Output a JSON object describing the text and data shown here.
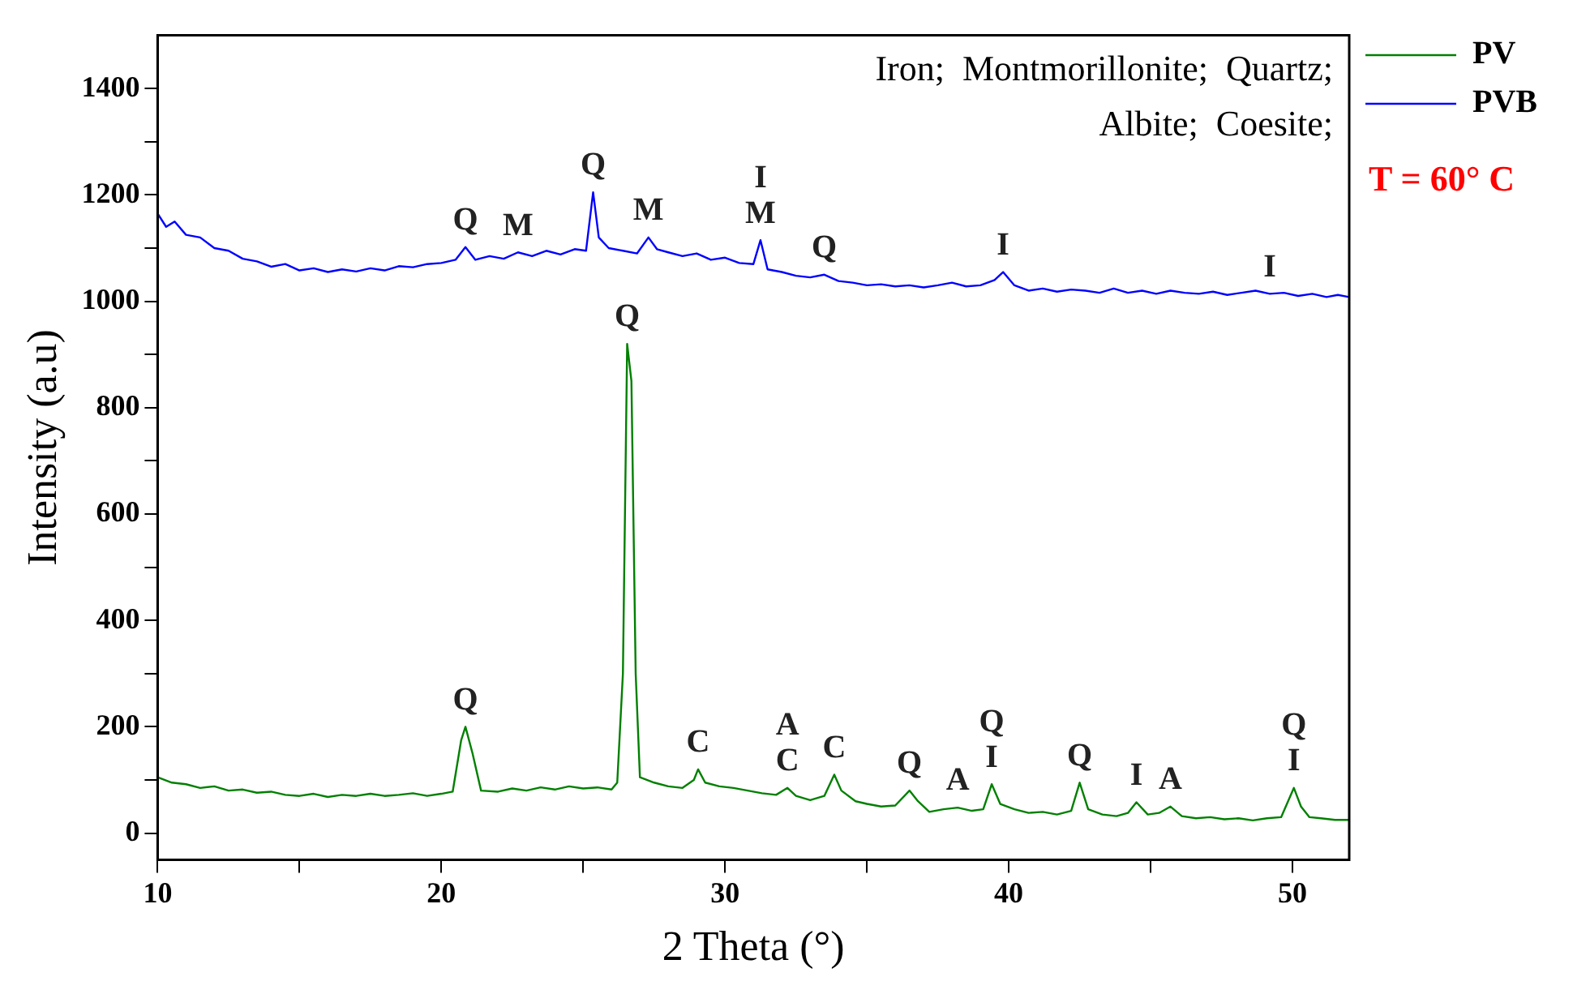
{
  "chart_data": {
    "type": "line",
    "xlabel": "2 Theta (°)",
    "ylabel": "Intensity (a.u)",
    "xlim": [
      10,
      52
    ],
    "ylim": [
      -50,
      1500
    ],
    "xticks": [
      10,
      {
        "value": 15,
        "label": null
      },
      20,
      {
        "value": 25,
        "label": null
      },
      30,
      {
        "value": 35,
        "label": null
      },
      40,
      {
        "value": 45,
        "label": null
      },
      50
    ],
    "yticks": [
      0,
      {
        "value": 100,
        "label": null
      },
      200,
      {
        "value": 300,
        "label": null
      },
      400,
      {
        "value": 500,
        "label": null
      },
      600,
      {
        "value": 700,
        "label": null
      },
      800,
      {
        "value": 900,
        "label": null
      },
      1000,
      {
        "value": 1100,
        "label": null
      },
      1200,
      {
        "value": 1300,
        "label": null
      },
      1400
    ],
    "grid": false,
    "legend": "top right",
    "marker": "none",
    "line_style": "solid",
    "series": [
      {
        "name": "PV",
        "color": "#008000",
        "x": [
          10,
          10.5,
          11,
          11.5,
          12,
          12.5,
          13,
          13.5,
          14,
          14.5,
          15,
          15.5,
          16,
          16.5,
          17,
          17.5,
          18,
          18.5,
          19,
          19.5,
          20,
          20.4,
          20.7,
          20.85,
          21.1,
          21.4,
          22,
          22.5,
          23,
          23.5,
          24,
          24.5,
          25,
          25.5,
          26,
          26.2,
          26.4,
          26.55,
          26.7,
          26.85,
          27,
          27.5,
          28,
          28.5,
          28.9,
          29.05,
          29.3,
          29.8,
          30.3,
          30.8,
          31.3,
          31.8,
          32.2,
          32.5,
          33,
          33.5,
          33.85,
          34.1,
          34.6,
          35,
          35.5,
          36,
          36.5,
          36.8,
          37.2,
          37.7,
          38.2,
          38.7,
          39.1,
          39.4,
          39.7,
          40.2,
          40.7,
          41.2,
          41.7,
          42.2,
          42.5,
          42.8,
          43.3,
          43.8,
          44.2,
          44.5,
          44.9,
          45.3,
          45.7,
          46.1,
          46.6,
          47.1,
          47.6,
          48.1,
          48.6,
          49.1,
          49.6,
          50.05,
          50.3,
          50.6,
          51,
          51.5,
          52
        ],
        "values": [
          105,
          95,
          92,
          85,
          88,
          80,
          82,
          76,
          78,
          72,
          70,
          74,
          68,
          72,
          70,
          74,
          70,
          72,
          75,
          70,
          74,
          78,
          175,
          200,
          150,
          80,
          78,
          84,
          80,
          86,
          82,
          88,
          84,
          86,
          82,
          95,
          300,
          920,
          850,
          300,
          105,
          95,
          88,
          85,
          100,
          120,
          95,
          88,
          85,
          80,
          75,
          72,
          85,
          70,
          62,
          70,
          110,
          80,
          60,
          55,
          50,
          52,
          80,
          60,
          40,
          45,
          48,
          42,
          45,
          92,
          55,
          45,
          38,
          40,
          35,
          42,
          95,
          45,
          35,
          32,
          38,
          58,
          35,
          38,
          50,
          32,
          28,
          30,
          26,
          28,
          24,
          28,
          30,
          85,
          50,
          30,
          28,
          25,
          25
        ]
      },
      {
        "name": "PVB",
        "color": "#0000ff",
        "x": [
          10,
          10.3,
          10.6,
          11,
          11.5,
          12,
          12.5,
          13,
          13.5,
          14,
          14.5,
          15,
          15.5,
          16,
          16.5,
          17,
          17.5,
          18,
          18.5,
          19,
          19.5,
          20,
          20.5,
          20.85,
          21.2,
          21.7,
          22.2,
          22.7,
          23.2,
          23.7,
          24.2,
          24.7,
          25.1,
          25.35,
          25.55,
          25.9,
          26.4,
          26.9,
          27.3,
          27.6,
          28,
          28.5,
          29,
          29.5,
          30,
          30.5,
          31,
          31.25,
          31.5,
          32,
          32.5,
          33,
          33.5,
          34,
          34.5,
          35,
          35.5,
          36,
          36.5,
          37,
          37.5,
          38,
          38.5,
          39,
          39.5,
          39.8,
          40.2,
          40.7,
          41.2,
          41.7,
          42.2,
          42.7,
          43.2,
          43.7,
          44.2,
          44.7,
          45.2,
          45.7,
          46.2,
          46.7,
          47.2,
          47.7,
          48.2,
          48.7,
          49.2,
          49.7,
          50.2,
          50.7,
          51.2,
          51.6,
          52
        ],
        "values": [
          1165,
          1140,
          1150,
          1125,
          1120,
          1100,
          1095,
          1080,
          1075,
          1065,
          1070,
          1058,
          1062,
          1055,
          1060,
          1056,
          1062,
          1058,
          1066,
          1064,
          1070,
          1072,
          1078,
          1102,
          1078,
          1085,
          1080,
          1092,
          1085,
          1095,
          1088,
          1098,
          1095,
          1205,
          1120,
          1100,
          1095,
          1090,
          1120,
          1098,
          1092,
          1085,
          1090,
          1078,
          1082,
          1072,
          1070,
          1115,
          1060,
          1055,
          1048,
          1045,
          1050,
          1038,
          1035,
          1030,
          1032,
          1028,
          1030,
          1026,
          1030,
          1035,
          1028,
          1030,
          1040,
          1055,
          1030,
          1020,
          1024,
          1018,
          1022,
          1020,
          1016,
          1024,
          1016,
          1020,
          1014,
          1020,
          1016,
          1014,
          1018,
          1012,
          1016,
          1020,
          1014,
          1016,
          1010,
          1014,
          1008,
          1012,
          1008
        ]
      }
    ],
    "annotations": [
      "Iron;  Montmorillonite;  Quartz;",
      "Albite;  Coesite;",
      "T = 60° C",
      {
        "text": "Q",
        "x": 20.85,
        "y": 1102
      },
      {
        "text": "M",
        "x": 22.7,
        "y": 1092
      },
      {
        "text": "Q",
        "x": 25.35,
        "y": 1205
      },
      {
        "text": "M",
        "x": 27.3,
        "y": 1120
      },
      {
        "text": "I",
        "x": 31.25,
        "y": 1115
      },
      {
        "text": "M",
        "x": 31.25,
        "y": 1115
      },
      {
        "text": "Q",
        "x": 33.5,
        "y": 1050
      },
      {
        "text": "I",
        "x": 39.8,
        "y": 1055
      },
      {
        "text": "I",
        "x": 49.2,
        "y": 1014
      },
      {
        "text": "Q",
        "x": 20.85,
        "y": 200
      },
      {
        "text": "Q",
        "x": 26.55,
        "y": 920
      },
      {
        "text": "C",
        "x": 29.05,
        "y": 120
      },
      {
        "text": "A",
        "x": 32.2,
        "y": 85
      },
      {
        "text": "C",
        "x": 32.2,
        "y": 85
      },
      {
        "text": "C",
        "x": 33.85,
        "y": 110
      },
      {
        "text": "Q",
        "x": 36.5,
        "y": 80
      },
      {
        "text": "A",
        "x": 38.2,
        "y": 48
      },
      {
        "text": "Q",
        "x": 39.4,
        "y": 92
      },
      {
        "text": "I",
        "x": 39.4,
        "y": 92
      },
      {
        "text": "Q",
        "x": 42.5,
        "y": 95
      },
      {
        "text": "I",
        "x": 44.5,
        "y": 58
      },
      {
        "text": "A",
        "x": 45.7,
        "y": 50
      },
      {
        "text": "Q",
        "x": 50.05,
        "y": 85
      },
      {
        "text": "I",
        "x": 50.05,
        "y": 85
      }
    ]
  }
}
